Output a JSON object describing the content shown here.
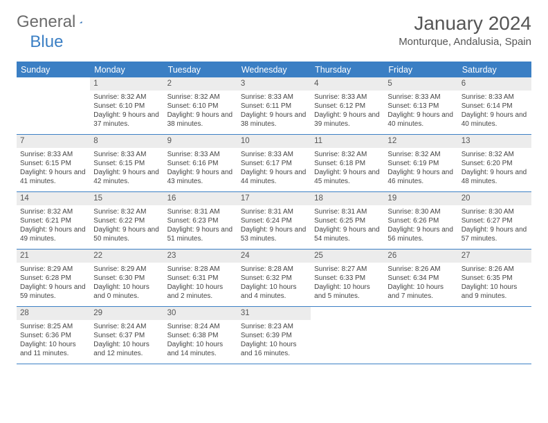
{
  "logo": {
    "part1": "General",
    "part2": "Blue"
  },
  "title": "January 2024",
  "location": "Monturque, Andalusia, Spain",
  "day_names": [
    "Sunday",
    "Monday",
    "Tuesday",
    "Wednesday",
    "Thursday",
    "Friday",
    "Saturday"
  ],
  "colors": {
    "header_bg": "#3b7fc4",
    "header_text": "#ffffff",
    "daynum_bg": "#ececec",
    "border": "#3b7fc4",
    "text": "#444444",
    "logo_gray": "#6b6b6b",
    "logo_blue": "#3b7fc4"
  },
  "weeks": [
    [
      {
        "n": "",
        "sunrise": "",
        "sunset": "",
        "daylight": ""
      },
      {
        "n": "1",
        "sunrise": "Sunrise: 8:32 AM",
        "sunset": "Sunset: 6:10 PM",
        "daylight": "Daylight: 9 hours and 37 minutes."
      },
      {
        "n": "2",
        "sunrise": "Sunrise: 8:32 AM",
        "sunset": "Sunset: 6:10 PM",
        "daylight": "Daylight: 9 hours and 38 minutes."
      },
      {
        "n": "3",
        "sunrise": "Sunrise: 8:33 AM",
        "sunset": "Sunset: 6:11 PM",
        "daylight": "Daylight: 9 hours and 38 minutes."
      },
      {
        "n": "4",
        "sunrise": "Sunrise: 8:33 AM",
        "sunset": "Sunset: 6:12 PM",
        "daylight": "Daylight: 9 hours and 39 minutes."
      },
      {
        "n": "5",
        "sunrise": "Sunrise: 8:33 AM",
        "sunset": "Sunset: 6:13 PM",
        "daylight": "Daylight: 9 hours and 40 minutes."
      },
      {
        "n": "6",
        "sunrise": "Sunrise: 8:33 AM",
        "sunset": "Sunset: 6:14 PM",
        "daylight": "Daylight: 9 hours and 40 minutes."
      }
    ],
    [
      {
        "n": "7",
        "sunrise": "Sunrise: 8:33 AM",
        "sunset": "Sunset: 6:15 PM",
        "daylight": "Daylight: 9 hours and 41 minutes."
      },
      {
        "n": "8",
        "sunrise": "Sunrise: 8:33 AM",
        "sunset": "Sunset: 6:15 PM",
        "daylight": "Daylight: 9 hours and 42 minutes."
      },
      {
        "n": "9",
        "sunrise": "Sunrise: 8:33 AM",
        "sunset": "Sunset: 6:16 PM",
        "daylight": "Daylight: 9 hours and 43 minutes."
      },
      {
        "n": "10",
        "sunrise": "Sunrise: 8:33 AM",
        "sunset": "Sunset: 6:17 PM",
        "daylight": "Daylight: 9 hours and 44 minutes."
      },
      {
        "n": "11",
        "sunrise": "Sunrise: 8:32 AM",
        "sunset": "Sunset: 6:18 PM",
        "daylight": "Daylight: 9 hours and 45 minutes."
      },
      {
        "n": "12",
        "sunrise": "Sunrise: 8:32 AM",
        "sunset": "Sunset: 6:19 PM",
        "daylight": "Daylight: 9 hours and 46 minutes."
      },
      {
        "n": "13",
        "sunrise": "Sunrise: 8:32 AM",
        "sunset": "Sunset: 6:20 PM",
        "daylight": "Daylight: 9 hours and 48 minutes."
      }
    ],
    [
      {
        "n": "14",
        "sunrise": "Sunrise: 8:32 AM",
        "sunset": "Sunset: 6:21 PM",
        "daylight": "Daylight: 9 hours and 49 minutes."
      },
      {
        "n": "15",
        "sunrise": "Sunrise: 8:32 AM",
        "sunset": "Sunset: 6:22 PM",
        "daylight": "Daylight: 9 hours and 50 minutes."
      },
      {
        "n": "16",
        "sunrise": "Sunrise: 8:31 AM",
        "sunset": "Sunset: 6:23 PM",
        "daylight": "Daylight: 9 hours and 51 minutes."
      },
      {
        "n": "17",
        "sunrise": "Sunrise: 8:31 AM",
        "sunset": "Sunset: 6:24 PM",
        "daylight": "Daylight: 9 hours and 53 minutes."
      },
      {
        "n": "18",
        "sunrise": "Sunrise: 8:31 AM",
        "sunset": "Sunset: 6:25 PM",
        "daylight": "Daylight: 9 hours and 54 minutes."
      },
      {
        "n": "19",
        "sunrise": "Sunrise: 8:30 AM",
        "sunset": "Sunset: 6:26 PM",
        "daylight": "Daylight: 9 hours and 56 minutes."
      },
      {
        "n": "20",
        "sunrise": "Sunrise: 8:30 AM",
        "sunset": "Sunset: 6:27 PM",
        "daylight": "Daylight: 9 hours and 57 minutes."
      }
    ],
    [
      {
        "n": "21",
        "sunrise": "Sunrise: 8:29 AM",
        "sunset": "Sunset: 6:28 PM",
        "daylight": "Daylight: 9 hours and 59 minutes."
      },
      {
        "n": "22",
        "sunrise": "Sunrise: 8:29 AM",
        "sunset": "Sunset: 6:30 PM",
        "daylight": "Daylight: 10 hours and 0 minutes."
      },
      {
        "n": "23",
        "sunrise": "Sunrise: 8:28 AM",
        "sunset": "Sunset: 6:31 PM",
        "daylight": "Daylight: 10 hours and 2 minutes."
      },
      {
        "n": "24",
        "sunrise": "Sunrise: 8:28 AM",
        "sunset": "Sunset: 6:32 PM",
        "daylight": "Daylight: 10 hours and 4 minutes."
      },
      {
        "n": "25",
        "sunrise": "Sunrise: 8:27 AM",
        "sunset": "Sunset: 6:33 PM",
        "daylight": "Daylight: 10 hours and 5 minutes."
      },
      {
        "n": "26",
        "sunrise": "Sunrise: 8:26 AM",
        "sunset": "Sunset: 6:34 PM",
        "daylight": "Daylight: 10 hours and 7 minutes."
      },
      {
        "n": "27",
        "sunrise": "Sunrise: 8:26 AM",
        "sunset": "Sunset: 6:35 PM",
        "daylight": "Daylight: 10 hours and 9 minutes."
      }
    ],
    [
      {
        "n": "28",
        "sunrise": "Sunrise: 8:25 AM",
        "sunset": "Sunset: 6:36 PM",
        "daylight": "Daylight: 10 hours and 11 minutes."
      },
      {
        "n": "29",
        "sunrise": "Sunrise: 8:24 AM",
        "sunset": "Sunset: 6:37 PM",
        "daylight": "Daylight: 10 hours and 12 minutes."
      },
      {
        "n": "30",
        "sunrise": "Sunrise: 8:24 AM",
        "sunset": "Sunset: 6:38 PM",
        "daylight": "Daylight: 10 hours and 14 minutes."
      },
      {
        "n": "31",
        "sunrise": "Sunrise: 8:23 AM",
        "sunset": "Sunset: 6:39 PM",
        "daylight": "Daylight: 10 hours and 16 minutes."
      },
      {
        "n": "",
        "sunrise": "",
        "sunset": "",
        "daylight": ""
      },
      {
        "n": "",
        "sunrise": "",
        "sunset": "",
        "daylight": ""
      },
      {
        "n": "",
        "sunrise": "",
        "sunset": "",
        "daylight": ""
      }
    ]
  ]
}
